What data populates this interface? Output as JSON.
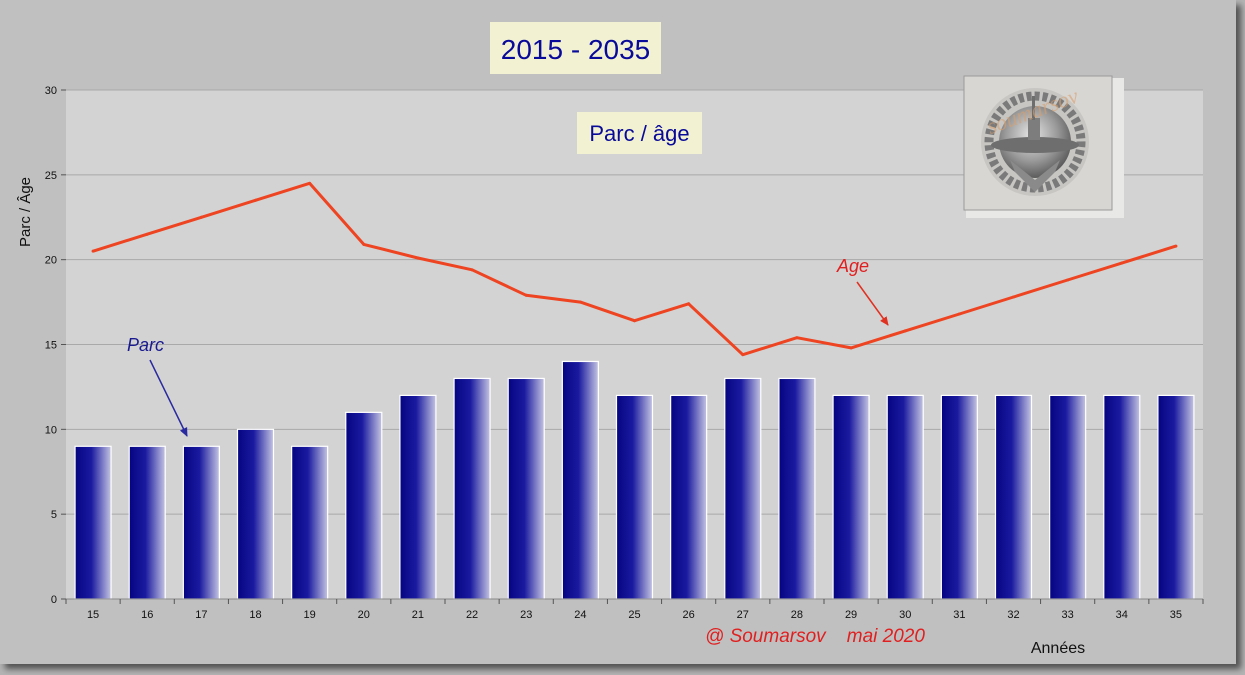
{
  "chart_data": {
    "type": "bar",
    "title": "2015 - 2035",
    "subtitle": "Parc / âge",
    "xlabel": "Années",
    "ylabel": "Parc / Âge",
    "ylim": [
      0,
      30
    ],
    "yticks": [
      0,
      5,
      10,
      15,
      20,
      25,
      30
    ],
    "grid": true,
    "categories": [
      "15",
      "16",
      "17",
      "18",
      "19",
      "20",
      "21",
      "22",
      "23",
      "24",
      "25",
      "26",
      "27",
      "28",
      "29",
      "30",
      "31",
      "32",
      "33",
      "34",
      "35"
    ],
    "series": [
      {
        "name": "Parc",
        "type": "bar",
        "color": "#0a0a8c",
        "values": [
          9,
          9,
          9,
          10,
          9,
          11,
          12,
          13,
          13,
          14,
          12,
          12,
          13,
          13,
          12,
          12,
          12,
          12,
          12,
          12,
          12
        ]
      },
      {
        "name": "Age",
        "type": "line",
        "color": "#ee4422",
        "values": [
          20.5,
          21.5,
          22.5,
          23.5,
          24.5,
          20.9,
          20.1,
          19.4,
          17.9,
          17.5,
          16.4,
          17.4,
          14.4,
          15.4,
          14.8,
          15.8,
          16.8,
          17.8,
          18.8,
          19.8,
          20.8
        ]
      }
    ],
    "annotations": {
      "parc_label": "Parc",
      "age_label": "Age",
      "credit": "@ Soumarsov    mai 2020"
    }
  },
  "colors": {
    "frame_bg": "#c0c0c0",
    "plot_bg": "#d3d3d3",
    "title_box_bg": "#f2f2d2",
    "title_text": "#0a0a9a",
    "credit_text": "#e02020"
  },
  "logo": {
    "icon": "submarine-badge-icon",
    "watermark_text": "soumarsov"
  }
}
